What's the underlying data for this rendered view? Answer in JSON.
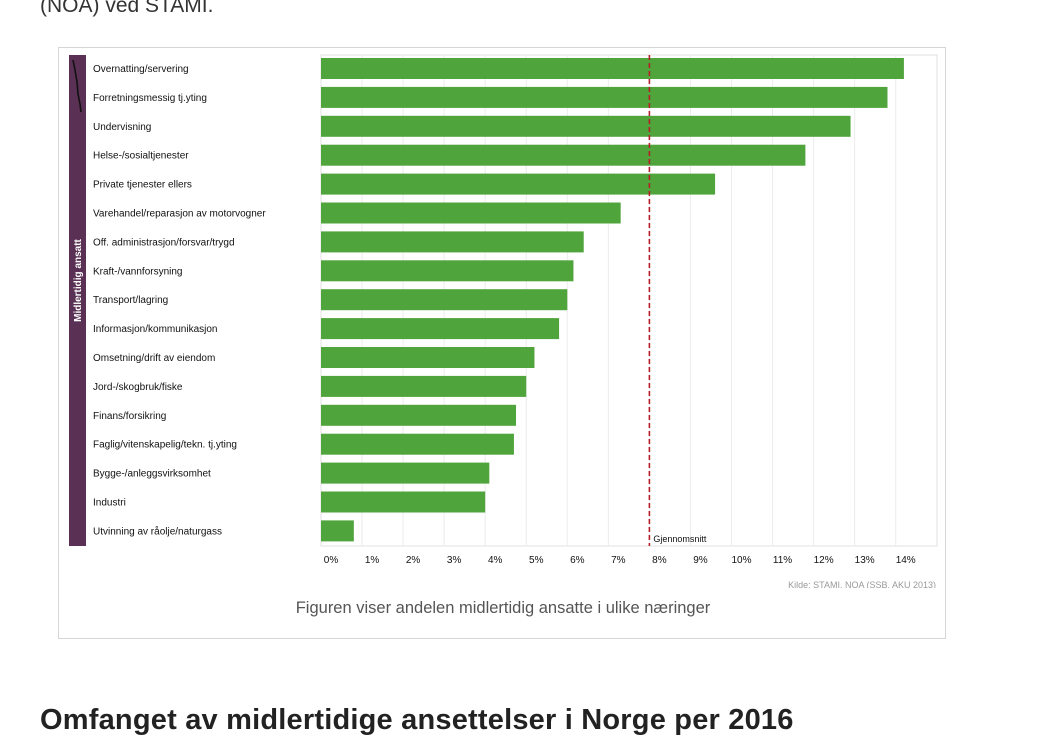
{
  "intro": {
    "text_fragment": "(NOA) ved STAMI."
  },
  "figure": {
    "caption": "Figuren viser andelen midlertidig ansatte i ulike næringer"
  },
  "heading": {
    "text": "Omfanget av midlertidige ansettelser i Norge per 2016"
  },
  "chart_data": {
    "type": "bar",
    "orientation": "horizontal",
    "series_label": "Midlertidig ansatt",
    "categories": [
      "Overnatting/servering",
      "Forretningsmessig tj.yting",
      "Undervisning",
      "Helse-/sosialtjenester",
      "Private tjenester ellers",
      "Varehandel/reparasjon av motorvogner",
      "Off. administrasjon/forsvar/trygd",
      "Kraft-/vannforsyning",
      "Transport/lagring",
      "Informasjon/kommunikasjon",
      "Omsetning/drift av eiendom",
      "Jord-/skogbruk/fiske",
      "Finans/forsikring",
      "Faglig/vitenskapelig/tekn. tj.yting",
      "Bygge-/anleggsvirksomhet",
      "Industri",
      "Utvinning av råolje/naturgass"
    ],
    "values": [
      14.2,
      13.8,
      12.9,
      11.8,
      9.6,
      7.3,
      6.4,
      6.15,
      6.0,
      5.8,
      5.2,
      5.0,
      4.75,
      4.7,
      4.1,
      4.0,
      0.8
    ],
    "xlim": [
      0,
      15
    ],
    "x_ticks": [
      0,
      1,
      2,
      3,
      4,
      5,
      6,
      7,
      8,
      9,
      10,
      11,
      12,
      13,
      14
    ],
    "x_tick_labels": [
      "0%",
      "1%",
      "2%",
      "3%",
      "4%",
      "5%",
      "6%",
      "7%",
      "8%",
      "9%",
      "10%",
      "11%",
      "12%",
      "13%",
      "14%"
    ],
    "reference_line": {
      "value": 8,
      "label": "Gjennomsnitt"
    },
    "source": "Kilde: STAMI, NOA (SSB, AKU 2013)",
    "colors": {
      "bar": "#4fa43c",
      "sidebar": "#5a3154",
      "reference": "#b5202a",
      "grid": "#ececec"
    }
  }
}
